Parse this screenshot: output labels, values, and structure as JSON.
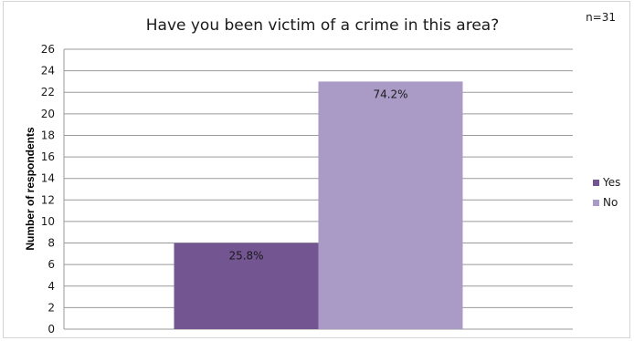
{
  "chart_data": {
    "type": "bar",
    "title": "Have you been victim of a crime in this area?",
    "note": "n=31",
    "ylabel": "Number of respondents",
    "xlabel": "",
    "ylim": [
      0,
      26
    ],
    "ytick_step": 2,
    "grid": true,
    "legend_position": "right",
    "series": [
      {
        "name": "Yes",
        "value": 8,
        "label": "25.8%",
        "color": "#735592"
      },
      {
        "name": "No",
        "value": 23,
        "label": "74.2%",
        "color": "#a99bc6"
      }
    ]
  }
}
